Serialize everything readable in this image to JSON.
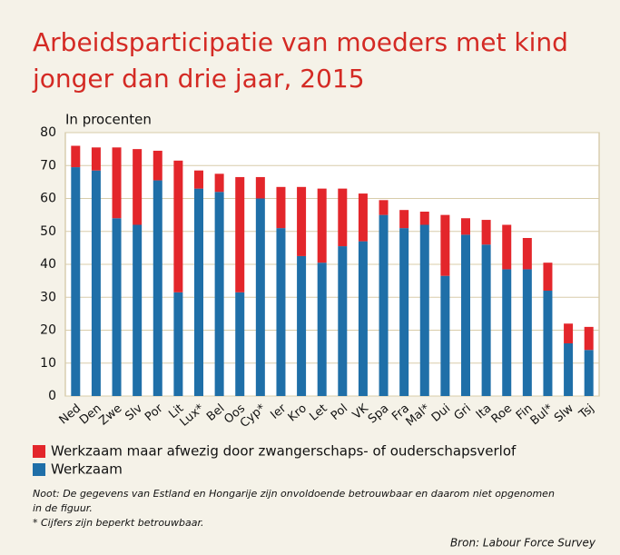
{
  "chart_data": {
    "type": "stacked_bar",
    "title": [
      "Arbeidsparticipatie van moeders met kind",
      "jonger dan drie jaar, 2015"
    ],
    "y_label": "In procenten",
    "categories": [
      "Ned",
      "Den",
      "Zwe",
      "Slv",
      "Por",
      "Lit",
      "Lux*",
      "Bel",
      "Oos",
      "Cyp*",
      "Ier",
      "Kro",
      "Let",
      "Pol",
      "VK",
      "Spa",
      "Fra",
      "Mal*",
      "Dui",
      "Gri",
      "Ita",
      "Roe",
      "Fin",
      "Bul*",
      "Slw",
      "Tsj"
    ],
    "series": [
      {
        "name": "Werkzaam",
        "color": "#1f6fa8",
        "values": [
          69.5,
          68.5,
          54,
          52,
          65.5,
          31.5,
          63,
          62,
          31.5,
          60,
          51,
          42.5,
          40.5,
          45.5,
          47,
          55,
          51,
          52,
          36.5,
          49,
          46,
          38.5,
          38.5,
          32,
          16,
          14
        ]
      },
      {
        "name": "Werkzaam maar afwezig door zwangerschaps- of ouderschapsverlof",
        "color": "#e3262b",
        "values": [
          6.5,
          7,
          21.5,
          23,
          9,
          40,
          5.5,
          5.5,
          35,
          6.5,
          12.5,
          21,
          22.5,
          17.5,
          14.5,
          4.5,
          5.5,
          4,
          18.5,
          5,
          7.5,
          13.5,
          9.5,
          8.5,
          6,
          7
        ]
      }
    ],
    "ylim": [
      0,
      80
    ],
    "yticks": [
      0,
      10,
      20,
      30,
      40,
      50,
      60,
      70,
      80
    ],
    "grid": true,
    "notes": [
      "Noot: De gegevens van Estland en Hongarije zijn onvoldoende betrouwbaar en daarom niet opgenomen",
      "in de figuur.",
      "* Cijfers zijn beperkt betrouwbaar."
    ],
    "source": "Bron: Labour Force Survey"
  }
}
